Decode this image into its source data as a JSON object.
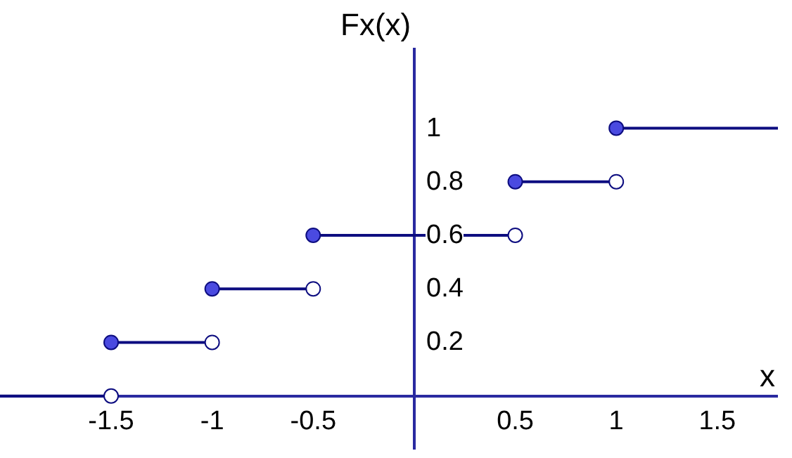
{
  "chart_data": {
    "type": "step",
    "xlabel": "x",
    "ylabel": "Fx(x)",
    "xlim": [
      -2.05,
      1.8
    ],
    "ylim": [
      -0.2,
      1.3
    ],
    "xticks": [
      -1.5,
      -1,
      -0.5,
      0.5,
      1,
      1.5
    ],
    "yticks": [
      0.2,
      0.4,
      0.6,
      0.8,
      1
    ],
    "grid": false,
    "marker": "circle",
    "line_style": "solid",
    "series": [
      {
        "color": "#0d0d80",
        "x": [
          -2.05,
          -1.5,
          -1,
          -0.5,
          0.5,
          1,
          1.8
        ],
        "values": [
          0,
          0.2,
          0.4,
          0.6,
          0.8,
          1,
          1
        ]
      },
      {
        "type": "scatter",
        "color": "#ffffff",
        "x": [
          -1.5,
          -1,
          -0.5,
          0.5,
          1
        ],
        "values": [
          0,
          0.2,
          0.4,
          0.6,
          0.8
        ]
      }
    ]
  }
}
